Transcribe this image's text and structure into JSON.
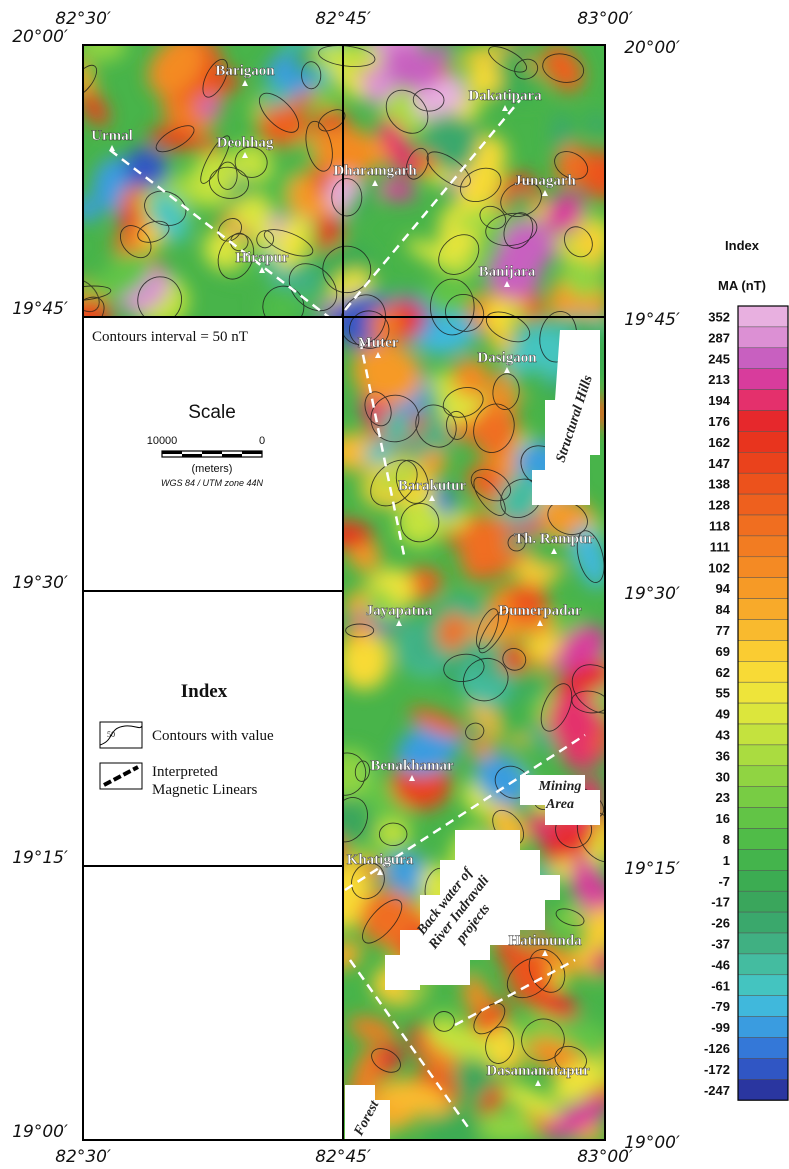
{
  "coordinates": {
    "longitudes": [
      "82°30′",
      "82°45′",
      "83°00′"
    ],
    "latitudes": [
      "20°00′",
      "19°45′",
      "19°30′",
      "19°15′",
      "19°00′"
    ]
  },
  "places": [
    "Barigaon",
    "Deohhag",
    "Urmal",
    "Dharamgarh",
    "Dakatipara",
    "Junagarh",
    "Hirapur",
    "Banijara",
    "Muter",
    "Dasigaon",
    "Barakutur",
    "Th. Rampur",
    "Jayapatna",
    "Dumerpadar",
    "Benakhamar",
    "Khatigura",
    "Hatimunda",
    "Dasamanatapur"
  ],
  "areas": {
    "structural_hills": "Structural Hills",
    "mining_area": [
      "Mining",
      "Area"
    ],
    "backwater": [
      "Back water of",
      "River Indravali",
      "projects"
    ],
    "forest": "Forest"
  },
  "contour_note": "Contours interval = 50 nT",
  "scale": {
    "title": "Scale",
    "left": "10000",
    "right": "0",
    "unit": "(meters)",
    "projection": "WGS 84 / UTM zone 44N"
  },
  "index": {
    "title": "Index",
    "contour_value": "50",
    "contours": "Contours with value",
    "linears": [
      "Interpreted",
      "Magnetic Linears"
    ]
  },
  "colorbar": {
    "title": "Index",
    "unit": "MA (nT)",
    "entries": [
      {
        "value": 352,
        "color": "#e8b0e0"
      },
      {
        "value": 287,
        "color": "#dc90d4"
      },
      {
        "value": 245,
        "color": "#c860c0"
      },
      {
        "value": 213,
        "color": "#d83c9c"
      },
      {
        "value": 194,
        "color": "#e4306c"
      },
      {
        "value": 176,
        "color": "#e6282c"
      },
      {
        "value": 162,
        "color": "#e8341e"
      },
      {
        "value": 147,
        "color": "#ea421c"
      },
      {
        "value": 138,
        "color": "#ec521c"
      },
      {
        "value": 128,
        "color": "#ee601e"
      },
      {
        "value": 118,
        "color": "#f06e20"
      },
      {
        "value": 111,
        "color": "#f27c22"
      },
      {
        "value": 102,
        "color": "#f48a24"
      },
      {
        "value": 94,
        "color": "#f69a26"
      },
      {
        "value": 84,
        "color": "#f8aa2a"
      },
      {
        "value": 77,
        "color": "#f9ba2e"
      },
      {
        "value": 69,
        "color": "#facc32"
      },
      {
        "value": 62,
        "color": "#f8da36"
      },
      {
        "value": 55,
        "color": "#eee43a"
      },
      {
        "value": 49,
        "color": "#dce63c"
      },
      {
        "value": 43,
        "color": "#c4e23e"
      },
      {
        "value": 36,
        "color": "#aadc40"
      },
      {
        "value": 30,
        "color": "#90d442"
      },
      {
        "value": 23,
        "color": "#78cc44"
      },
      {
        "value": 16,
        "color": "#62c446"
      },
      {
        "value": 8,
        "color": "#50bc48"
      },
      {
        "value": 1,
        "color": "#44b44c"
      },
      {
        "value": -7,
        "color": "#3cac52"
      },
      {
        "value": -17,
        "color": "#3aa65c"
      },
      {
        "value": -26,
        "color": "#3aa86c"
      },
      {
        "value": -37,
        "color": "#40b082"
      },
      {
        "value": -46,
        "color": "#44bca0"
      },
      {
        "value": -61,
        "color": "#44c4c0"
      },
      {
        "value": -79,
        "color": "#40b8dc"
      },
      {
        "value": -99,
        "color": "#3a9ce0"
      },
      {
        "value": -126,
        "color": "#3478d8"
      },
      {
        "value": -172,
        "color": "#3056c4"
      },
      {
        "value": -247,
        "color": "#2a36a0"
      }
    ]
  }
}
